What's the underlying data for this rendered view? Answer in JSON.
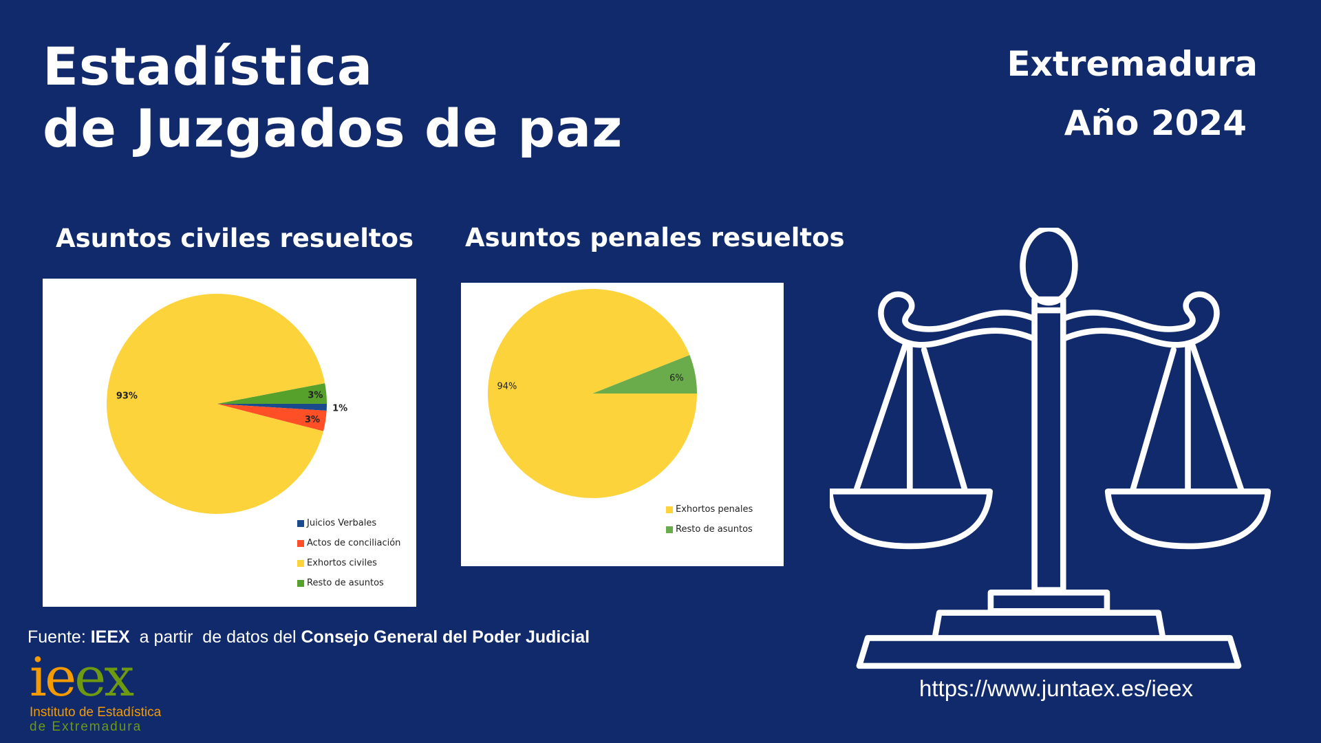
{
  "header": {
    "title_line1": "Estadística",
    "title_line2": "de Juzgados de paz",
    "region": "Extremadura",
    "year": "Año 2024"
  },
  "chart_data": [
    {
      "type": "pie",
      "title": "Asuntos civiles resueltos",
      "categories": [
        "Resto de asuntos",
        "Juicios Verbales",
        "Actos de conciliación",
        "Exhortos civiles"
      ],
      "values": [
        3,
        1,
        3,
        93
      ],
      "labels": [
        "3%",
        "1%",
        "3%",
        "93%"
      ],
      "colors": [
        "#56a02c",
        "#1b4b8c",
        "#ff4f26",
        "#fdd33c"
      ],
      "legend": [
        "Juicios Verbales",
        "Actos de conciliación",
        "Exhortos civiles",
        "Resto de asuntos"
      ],
      "legend_colors": [
        "#1b4b8c",
        "#ff4f26",
        "#fdd33c",
        "#56a02c"
      ],
      "legend_position": "bottom-right"
    },
    {
      "type": "pie",
      "title": "Asuntos penales resueltos",
      "categories": [
        "Resto de asuntos",
        "Exhortos penales"
      ],
      "values": [
        6,
        94
      ],
      "labels": [
        "6%",
        "94%"
      ],
      "colors": [
        "#6aac4c",
        "#fdd33c"
      ],
      "legend": [
        "Exhortos penales",
        "Resto de asuntos"
      ],
      "legend_colors": [
        "#fdd33c",
        "#6aac4c"
      ],
      "legend_position": "bottom-right"
    }
  ],
  "footer": {
    "source_prefix": "Fuente: ",
    "source_org": "IEEX",
    "source_mid": "  a partir  de datos del ",
    "source_body": "Consejo General del Poder Judicial",
    "url": "https://www.juntaex.es/ieex"
  },
  "logo": {
    "letters_ie": "ie",
    "letters_ex": "ex",
    "line1": "Instituto de Estadística",
    "line2": "de Extremadura"
  }
}
